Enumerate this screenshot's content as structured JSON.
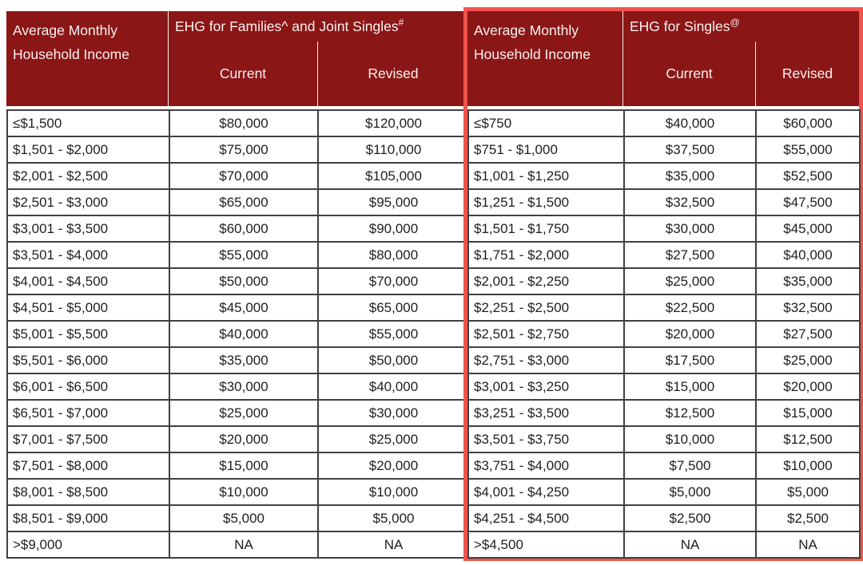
{
  "colors": {
    "header_bg": "#8B1616",
    "header_text": "#F8F1F1",
    "body_text": "#1E1E1E",
    "grid_border": "#404040",
    "highlight_border": "#F0544C",
    "page_bg": "#FFFFFF"
  },
  "tables": [
    {
      "income_header_line1": "Average Monthly",
      "income_header_line2": "Household Income",
      "group_title": "EHG for Families^ and Joint Singles",
      "group_title_sup": "#",
      "col_current": "Current",
      "col_revised": "Revised",
      "rows": [
        [
          "≤$1,500",
          "$80,000",
          "$120,000"
        ],
        [
          "$1,501 - $2,000",
          "$75,000",
          "$110,000"
        ],
        [
          "$2,001 - $2,500",
          "$70,000",
          "$105,000"
        ],
        [
          "$2,501 - $3,000",
          "$65,000",
          "$95,000"
        ],
        [
          "$3,001 - $3,500",
          "$60,000",
          "$90,000"
        ],
        [
          "$3,501 - $4,000",
          "$55,000",
          "$80,000"
        ],
        [
          "$4,001 - $4,500",
          "$50,000",
          "$70,000"
        ],
        [
          "$4,501 - $5,000",
          "$45,000",
          "$65,000"
        ],
        [
          "$5,001 - $5,500",
          "$40,000",
          "$55,000"
        ],
        [
          "$5,501 - $6,000",
          "$35,000",
          "$50,000"
        ],
        [
          "$6,001 - $6,500",
          "$30,000",
          "$40,000"
        ],
        [
          "$6,501 - $7,000",
          "$25,000",
          "$30,000"
        ],
        [
          "$7,001 - $7,500",
          "$20,000",
          "$25,000"
        ],
        [
          "$7,501 - $8,000",
          "$15,000",
          "$20,000"
        ],
        [
          "$8,001 - $8,500",
          "$10,000",
          "$10,000"
        ],
        [
          "$8,501 - $9,000",
          "$5,000",
          "$5,000"
        ],
        [
          ">$9,000",
          "NA",
          "NA"
        ]
      ]
    },
    {
      "income_header_line1": "Average Monthly",
      "income_header_line2": "Household Income",
      "group_title": "EHG for Singles",
      "group_title_sup": "@",
      "col_current": "Current",
      "col_revised": "Revised",
      "rows": [
        [
          "≤$750",
          "$40,000",
          "$60,000"
        ],
        [
          "$751 - $1,000",
          "$37,500",
          "$55,000"
        ],
        [
          "$1,001 - $1,250",
          "$35,000",
          "$52,500"
        ],
        [
          "$1,251 - $1,500",
          "$32,500",
          "$47,500"
        ],
        [
          "$1,501 - $1,750",
          "$30,000",
          "$45,000"
        ],
        [
          "$1,751 - $2,000",
          "$27,500",
          "$40,000"
        ],
        [
          "$2,001 - $2,250",
          "$25,000",
          "$35,000"
        ],
        [
          "$2,251 - $2,500",
          "$22,500",
          "$32,500"
        ],
        [
          "$2,501 - $2,750",
          "$20,000",
          "$27,500"
        ],
        [
          "$2,751 - $3,000",
          "$17,500",
          "$25,000"
        ],
        [
          "$3,001 - $3,250",
          "$15,000",
          "$20,000"
        ],
        [
          "$3,251 - $3,500",
          "$12,500",
          "$15,000"
        ],
        [
          "$3,501 - $3,750",
          "$10,000",
          "$12,500"
        ],
        [
          "$3,751 - $4,000",
          "$7,500",
          "$10,000"
        ],
        [
          "$4,001 - $4,250",
          "$5,000",
          "$5,000"
        ],
        [
          "$4,251 - $4,500",
          "$2,500",
          "$2,500"
        ],
        [
          ">$4,500",
          "NA",
          "NA"
        ]
      ]
    }
  ]
}
